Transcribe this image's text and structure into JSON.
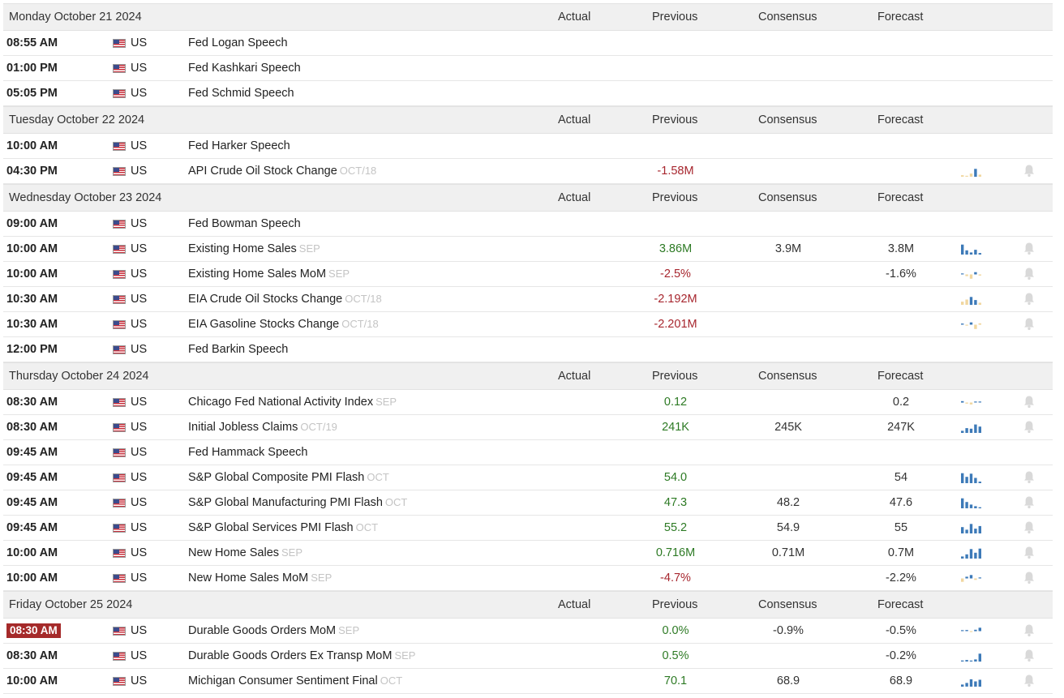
{
  "columns": {
    "actual": "Actual",
    "previous": "Previous",
    "consensus": "Consensus",
    "forecast": "Forecast"
  },
  "colors": {
    "positive": "#2d7a24",
    "negative": "#a7262e",
    "bar_blue": "#3d7ab8",
    "bar_beige": "#f1d7a0",
    "highlight": "#a52a2a"
  },
  "icons": {
    "flag": "us-flag-icon",
    "chart": "sparkline-chart-icon",
    "alert": "bell-icon"
  },
  "days": [
    {
      "date": "Monday October 21 2024",
      "events": [
        {
          "time": "08:55 AM",
          "country": "US",
          "name": "Fed Logan Speech"
        },
        {
          "time": "01:00 PM",
          "country": "US",
          "name": "Fed Kashkari Speech"
        },
        {
          "time": "05:05 PM",
          "country": "US",
          "name": "Fed Schmid Speech"
        }
      ]
    },
    {
      "date": "Tuesday October 22 2024",
      "events": [
        {
          "time": "10:00 AM",
          "country": "US",
          "name": "Fed Harker Speech"
        },
        {
          "time": "04:30 PM",
          "country": "US",
          "name": "API Crude Oil Stock Change",
          "ref": "OCT/18",
          "previous": "-1.58M",
          "previous_trend": "negative",
          "spark": [
            [
              0.15,
              "b"
            ],
            [
              0,
              "b"
            ],
            [
              0.3,
              "b"
            ],
            [
              0.75,
              "u"
            ],
            [
              0.2,
              "b"
            ]
          ],
          "alert": true
        }
      ]
    },
    {
      "date": "Wednesday October 23 2024",
      "events": [
        {
          "time": "09:00 AM",
          "country": "US",
          "name": "Fed Bowman Speech"
        },
        {
          "time": "10:00 AM",
          "country": "US",
          "name": "Existing Home Sales",
          "ref": "SEP",
          "previous": "3.86M",
          "previous_trend": "positive",
          "consensus": "3.9M",
          "forecast": "3.8M",
          "spark": [
            [
              0.95,
              "u"
            ],
            [
              0.4,
              "u"
            ],
            [
              0.2,
              "u"
            ],
            [
              0.45,
              "u"
            ],
            [
              0.15,
              "u"
            ]
          ],
          "alert": true
        },
        {
          "time": "10:00 AM",
          "country": "US",
          "name": "Existing Home Sales MoM",
          "ref": "SEP",
          "previous": "-2.5%",
          "previous_trend": "negative",
          "forecast": "-1.6%",
          "spark": [
            [
              0.15,
              "u"
            ],
            [
              -0.3,
              "d"
            ],
            [
              -0.75,
              "d"
            ],
            [
              0.4,
              "u"
            ],
            [
              -0.2,
              "d"
            ]
          ],
          "alert": true
        },
        {
          "time": "10:30 AM",
          "country": "US",
          "name": "EIA Crude Oil Stocks Change",
          "ref": "OCT/18",
          "previous": "-2.192M",
          "previous_trend": "negative",
          "spark": [
            [
              0.3,
              "b"
            ],
            [
              0.5,
              "b"
            ],
            [
              0.75,
              "u"
            ],
            [
              0.45,
              "u"
            ],
            [
              0.2,
              "b"
            ]
          ],
          "alert": true
        },
        {
          "time": "10:30 AM",
          "country": "US",
          "name": "EIA Gasoline Stocks Change",
          "ref": "OCT/18",
          "previous": "-2.201M",
          "previous_trend": "negative",
          "spark": [
            [
              0.2,
              "u"
            ],
            [
              -0.15,
              "d"
            ],
            [
              0.4,
              "u"
            ],
            [
              -0.75,
              "d"
            ],
            [
              0.25,
              "b"
            ]
          ],
          "alert": true
        },
        {
          "time": "12:00 PM",
          "country": "US",
          "name": "Fed Barkin Speech"
        }
      ]
    },
    {
      "date": "Thursday October 24 2024",
      "events": [
        {
          "time": "08:30 AM",
          "country": "US",
          "name": "Chicago Fed National Activity Index",
          "ref": "SEP",
          "previous": "0.12",
          "previous_trend": "positive",
          "forecast": "0.2",
          "spark": [
            [
              0.25,
              "u"
            ],
            [
              -0.2,
              "d"
            ],
            [
              -0.35,
              "d"
            ],
            [
              0.15,
              "u"
            ],
            [
              0.1,
              "u"
            ]
          ],
          "alert": true
        },
        {
          "time": "08:30 AM",
          "country": "US",
          "name": "Initial Jobless Claims",
          "ref": "OCT/19",
          "previous": "241K",
          "previous_trend": "positive",
          "consensus": "245K",
          "forecast": "247K",
          "spark": [
            [
              0.2,
              "u"
            ],
            [
              0.45,
              "u"
            ],
            [
              0.4,
              "u"
            ],
            [
              0.8,
              "u"
            ],
            [
              0.6,
              "u"
            ]
          ],
          "alert": true
        },
        {
          "time": "09:45 AM",
          "country": "US",
          "name": "Fed Hammack Speech"
        },
        {
          "time": "09:45 AM",
          "country": "US",
          "name": "S&P Global Composite PMI Flash",
          "ref": "OCT",
          "previous": "54.0",
          "previous_trend": "positive",
          "forecast": "54",
          "spark": [
            [
              0.95,
              "u"
            ],
            [
              0.6,
              "u"
            ],
            [
              0.9,
              "u"
            ],
            [
              0.5,
              "u"
            ],
            [
              0.15,
              "u"
            ]
          ],
          "alert": true
        },
        {
          "time": "09:45 AM",
          "country": "US",
          "name": "S&P Global Manufacturing PMI Flash",
          "ref": "OCT",
          "previous": "47.3",
          "previous_trend": "positive",
          "consensus": "48.2",
          "forecast": "47.6",
          "spark": [
            [
              0.95,
              "u"
            ],
            [
              0.6,
              "u"
            ],
            [
              0.35,
              "u"
            ],
            [
              0.2,
              "u"
            ],
            [
              0.1,
              "u"
            ]
          ],
          "alert": true
        },
        {
          "time": "09:45 AM",
          "country": "US",
          "name": "S&P Global Services PMI Flash",
          "ref": "OCT",
          "previous": "55.2",
          "previous_trend": "positive",
          "consensus": "54.9",
          "forecast": "55",
          "spark": [
            [
              0.6,
              "u"
            ],
            [
              0.35,
              "u"
            ],
            [
              0.9,
              "u"
            ],
            [
              0.45,
              "u"
            ],
            [
              0.7,
              "u"
            ]
          ],
          "alert": true
        },
        {
          "time": "10:00 AM",
          "country": "US",
          "name": "New Home Sales",
          "ref": "SEP",
          "previous": "0.716M",
          "previous_trend": "positive",
          "consensus": "0.71M",
          "forecast": "0.7M",
          "spark": [
            [
              0.2,
              "u"
            ],
            [
              0.4,
              "u"
            ],
            [
              0.9,
              "u"
            ],
            [
              0.55,
              "u"
            ],
            [
              0.95,
              "u"
            ]
          ],
          "alert": true
        },
        {
          "time": "10:00 AM",
          "country": "US",
          "name": "New Home Sales MoM",
          "ref": "SEP",
          "previous": "-4.7%",
          "previous_trend": "negative",
          "forecast": "-2.2%",
          "spark": [
            [
              -0.6,
              "d"
            ],
            [
              0.3,
              "u"
            ],
            [
              0.6,
              "u"
            ],
            [
              -0.25,
              "d"
            ],
            [
              0.15,
              "u"
            ]
          ],
          "alert": true
        }
      ]
    },
    {
      "date": "Friday October 25 2024",
      "events": [
        {
          "time": "08:30 AM",
          "country": "US",
          "name": "Durable Goods Orders MoM",
          "ref": "SEP",
          "previous": "0.0%",
          "previous_trend": "positive",
          "consensus": "-0.9%",
          "forecast": "-0.5%",
          "spark": [
            [
              0.1,
              "u"
            ],
            [
              0.2,
              "u"
            ],
            [
              -0.15,
              "d"
            ],
            [
              0.25,
              "u"
            ],
            [
              0.6,
              "u"
            ]
          ],
          "alert": true,
          "highlight": true
        },
        {
          "time": "08:30 AM",
          "country": "US",
          "name": "Durable Goods Orders Ex Transp MoM",
          "ref": "SEP",
          "previous": "0.5%",
          "previous_trend": "positive",
          "forecast": "-0.2%",
          "spark": [
            [
              0.1,
              "u"
            ],
            [
              0.15,
              "u"
            ],
            [
              0.05,
              "u"
            ],
            [
              0.2,
              "u"
            ],
            [
              0.75,
              "u"
            ]
          ],
          "alert": true
        },
        {
          "time": "10:00 AM",
          "country": "US",
          "name": "Michigan Consumer Sentiment Final",
          "ref": "OCT",
          "previous": "70.1",
          "previous_trend": "positive",
          "consensus": "68.9",
          "forecast": "68.9",
          "spark": [
            [
              0.2,
              "u"
            ],
            [
              0.35,
              "u"
            ],
            [
              0.7,
              "u"
            ],
            [
              0.5,
              "u"
            ],
            [
              0.65,
              "u"
            ]
          ],
          "alert": true
        }
      ]
    }
  ]
}
